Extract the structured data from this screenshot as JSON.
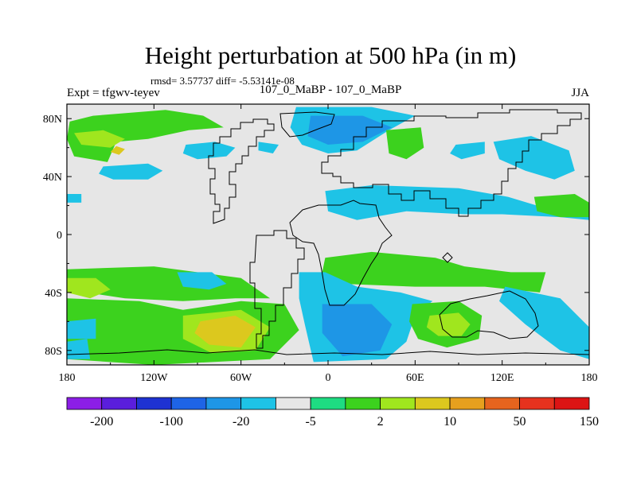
{
  "chart_data": {
    "type": "heatmap",
    "title": "Height perturbation at 500 hPa (in m)",
    "subtitle": "rmsd= 3.57737 diff= -5.53141e-08",
    "left_label": "Expt = tfgwv-teyev",
    "center_label": "107_0_MaBP - 107_0_MaBP",
    "right_label": "JJA",
    "x_ticks": [
      "180",
      "120W",
      "60W",
      "0",
      "60E",
      "120E",
      "180"
    ],
    "x_tick_values": [
      -180,
      -120,
      -60,
      0,
      60,
      120,
      180
    ],
    "y_ticks": [
      "80N",
      "40N",
      "0",
      "40S",
      "80S"
    ],
    "y_tick_values": [
      80,
      40,
      0,
      -40,
      -80
    ],
    "xlim": [
      -180,
      180
    ],
    "ylim": [
      -90,
      90
    ],
    "colorbar": {
      "colors": [
        "#8c1ee6",
        "#5a1edc",
        "#1e32d2",
        "#1e64e6",
        "#1e96e6",
        "#1ec3e6",
        "#e6e6e6",
        "#1edc82",
        "#3cd21e",
        "#a0e61e",
        "#dcc81e",
        "#e6a01e",
        "#e6641e",
        "#e6321e",
        "#dc1414"
      ],
      "tick_labels": [
        "-200",
        "-100",
        "-20",
        "-5",
        "2",
        "10",
        "50",
        "150"
      ],
      "tick_boundaries": [
        1,
        3,
        5,
        7,
        9,
        11,
        13,
        15
      ]
    },
    "regions": [
      {
        "level": 2,
        "points": [
          [
            -162,
            82
          ],
          [
            -112,
            86
          ],
          [
            -86,
            82
          ],
          [
            -72,
            74
          ],
          [
            -96,
            72
          ],
          [
            -124,
            66
          ],
          [
            -146,
            64
          ],
          [
            -152,
            50
          ],
          [
            -175,
            54
          ],
          [
            -180,
            66
          ],
          [
            -178,
            78
          ]
        ]
      },
      {
        "level": 3,
        "points": [
          [
            -175,
            70
          ],
          [
            -155,
            72
          ],
          [
            -140,
            66
          ],
          [
            -150,
            60
          ],
          [
            -170,
            62
          ]
        ]
      },
      {
        "level": 4,
        "points": [
          [
            -146,
            61
          ],
          [
            -140,
            59
          ],
          [
            -144,
            55
          ],
          [
            -150,
            57
          ]
        ]
      },
      {
        "level": -1,
        "points": [
          [
            -98,
            62
          ],
          [
            -78,
            64
          ],
          [
            -64,
            60
          ],
          [
            -70,
            54
          ],
          [
            -90,
            52
          ],
          [
            -100,
            56
          ]
        ]
      },
      {
        "level": -1,
        "points": [
          [
            -48,
            64
          ],
          [
            -34,
            62
          ],
          [
            -38,
            56
          ],
          [
            -48,
            58
          ]
        ]
      },
      {
        "level": -1,
        "points": [
          [
            -155,
            47
          ],
          [
            -124,
            49
          ],
          [
            -114,
            44
          ],
          [
            -124,
            38
          ],
          [
            -148,
            38
          ],
          [
            -158,
            42
          ]
        ]
      },
      {
        "level": -1,
        "points": [
          [
            -180,
            28
          ],
          [
            -170,
            28
          ],
          [
            -170,
            22
          ],
          [
            -180,
            22
          ]
        ]
      },
      {
        "level": -1,
        "points": [
          [
            -22,
            88
          ],
          [
            30,
            88
          ],
          [
            60,
            82
          ],
          [
            42,
            72
          ],
          [
            20,
            58
          ],
          [
            0,
            56
          ],
          [
            -18,
            62
          ],
          [
            -26,
            74
          ]
        ]
      },
      {
        "level": -2,
        "points": [
          [
            -12,
            82
          ],
          [
            24,
            82
          ],
          [
            44,
            74
          ],
          [
            24,
            64
          ],
          [
            0,
            62
          ],
          [
            -14,
            68
          ]
        ]
      },
      {
        "level": 2,
        "points": [
          [
            40,
            72
          ],
          [
            64,
            74
          ],
          [
            66,
            60
          ],
          [
            54,
            52
          ],
          [
            42,
            56
          ]
        ]
      },
      {
        "level": -1,
        "points": [
          [
            88,
            62
          ],
          [
            108,
            64
          ],
          [
            108,
            56
          ],
          [
            92,
            52
          ],
          [
            84,
            56
          ]
        ]
      },
      {
        "level": -1,
        "points": [
          [
            114,
            64
          ],
          [
            140,
            68
          ],
          [
            166,
            58
          ],
          [
            170,
            44
          ],
          [
            156,
            38
          ],
          [
            136,
            44
          ],
          [
            118,
            52
          ]
        ]
      },
      {
        "level": -1,
        "points": [
          [
            -2,
            30
          ],
          [
            30,
            34
          ],
          [
            90,
            32
          ],
          [
            124,
            26
          ],
          [
            144,
            20
          ],
          [
            168,
            26
          ],
          [
            180,
            22
          ],
          [
            180,
            10
          ],
          [
            160,
            12
          ],
          [
            120,
            14
          ],
          [
            94,
            14
          ],
          [
            54,
            16
          ],
          [
            20,
            10
          ],
          [
            0,
            16
          ]
        ]
      },
      {
        "level": 2,
        "points": [
          [
            142,
            26
          ],
          [
            170,
            28
          ],
          [
            180,
            22
          ],
          [
            180,
            12
          ],
          [
            160,
            12
          ],
          [
            144,
            16
          ]
        ]
      },
      {
        "level": 2,
        "points": [
          [
            -2,
            -16
          ],
          [
            30,
            -12
          ],
          [
            74,
            -16
          ],
          [
            94,
            -22
          ],
          [
            126,
            -26
          ],
          [
            150,
            -26
          ],
          [
            146,
            -40
          ],
          [
            108,
            -36
          ],
          [
            60,
            -36
          ],
          [
            10,
            -34
          ],
          [
            -4,
            -26
          ]
        ]
      },
      {
        "level": 2,
        "points": [
          [
            -180,
            -24
          ],
          [
            -120,
            -22
          ],
          [
            -60,
            -30
          ],
          [
            -40,
            -44
          ],
          [
            -64,
            -44
          ],
          [
            -100,
            -46
          ],
          [
            -140,
            -44
          ],
          [
            -180,
            -38
          ]
        ]
      },
      {
        "level": 3,
        "points": [
          [
            -180,
            -30
          ],
          [
            -160,
            -30
          ],
          [
            -150,
            -38
          ],
          [
            -164,
            -44
          ],
          [
            -180,
            -40
          ]
        ]
      },
      {
        "level": -1,
        "points": [
          [
            -104,
            -26
          ],
          [
            -80,
            -26
          ],
          [
            -70,
            -34
          ],
          [
            -82,
            -38
          ],
          [
            -100,
            -36
          ]
        ]
      },
      {
        "level": 2,
        "points": [
          [
            -180,
            -44
          ],
          [
            -130,
            -46
          ],
          [
            -100,
            -52
          ],
          [
            -60,
            -46
          ],
          [
            -30,
            -48
          ],
          [
            -20,
            -66
          ],
          [
            -40,
            -86
          ],
          [
            -120,
            -90
          ],
          [
            -180,
            -86
          ]
        ]
      },
      {
        "level": 3,
        "points": [
          [
            -100,
            -56
          ],
          [
            -60,
            -52
          ],
          [
            -40,
            -64
          ],
          [
            -50,
            -80
          ],
          [
            -80,
            -82
          ],
          [
            -100,
            -72
          ]
        ]
      },
      {
        "level": 4,
        "points": [
          [
            -88,
            -60
          ],
          [
            -64,
            -56
          ],
          [
            -50,
            -64
          ],
          [
            -60,
            -78
          ],
          [
            -82,
            -76
          ],
          [
            -92,
            -68
          ]
        ]
      },
      {
        "level": -1,
        "points": [
          [
            -180,
            -60
          ],
          [
            -160,
            -58
          ],
          [
            -160,
            -72
          ],
          [
            -180,
            -72
          ]
        ]
      },
      {
        "level": -1,
        "points": [
          [
            -20,
            -26
          ],
          [
            -2,
            -26
          ],
          [
            20,
            -36
          ],
          [
            50,
            -40
          ],
          [
            72,
            -46
          ],
          [
            60,
            -56
          ],
          [
            54,
            -74
          ],
          [
            40,
            -86
          ],
          [
            -10,
            -88
          ],
          [
            -16,
            -62
          ],
          [
            -20,
            -44
          ]
        ]
      },
      {
        "level": -2,
        "points": [
          [
            -4,
            -48
          ],
          [
            30,
            -48
          ],
          [
            44,
            -62
          ],
          [
            36,
            -80
          ],
          [
            10,
            -84
          ],
          [
            -4,
            -68
          ]
        ]
      },
      {
        "level": -1,
        "points": [
          [
            122,
            -36
          ],
          [
            160,
            -44
          ],
          [
            180,
            -64
          ],
          [
            180,
            -86
          ],
          [
            160,
            -80
          ],
          [
            136,
            -62
          ],
          [
            118,
            -46
          ]
        ]
      },
      {
        "level": 2,
        "points": [
          [
            58,
            -48
          ],
          [
            90,
            -46
          ],
          [
            106,
            -56
          ],
          [
            104,
            -72
          ],
          [
            82,
            -78
          ],
          [
            62,
            -72
          ],
          [
            56,
            -60
          ]
        ]
      },
      {
        "level": 3,
        "points": [
          [
            70,
            -56
          ],
          [
            90,
            -54
          ],
          [
            98,
            -62
          ],
          [
            92,
            -70
          ],
          [
            76,
            -70
          ],
          [
            68,
            -64
          ]
        ]
      },
      {
        "level": -1,
        "points": [
          [
            -180,
            -74
          ],
          [
            -166,
            -72
          ],
          [
            -164,
            -86
          ],
          [
            -180,
            -86
          ]
        ]
      }
    ]
  }
}
